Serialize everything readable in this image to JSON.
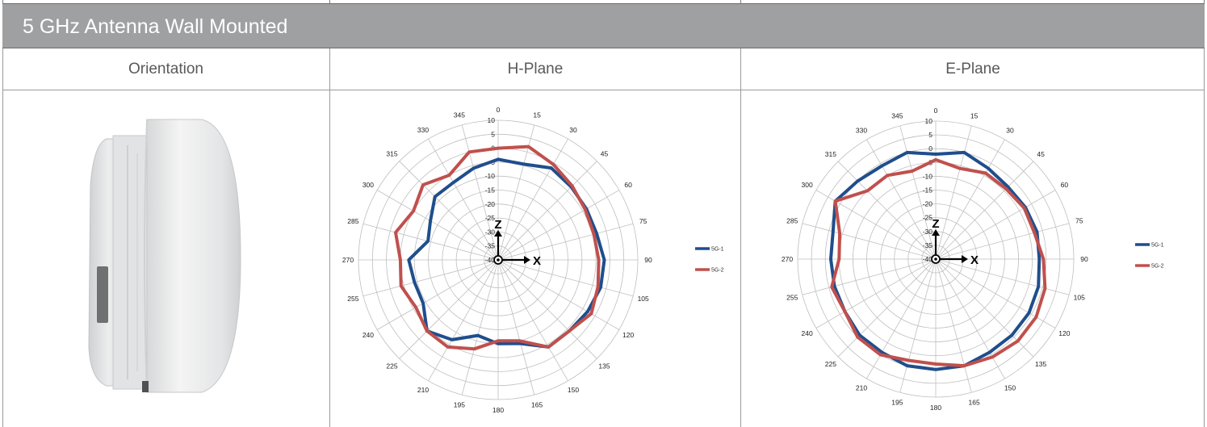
{
  "title": "5 GHz Antenna Wall Mounted",
  "headers": {
    "orientation": "Orientation",
    "h_plane": "H-Plane",
    "e_plane": "E-Plane"
  },
  "colors": {
    "series1": "#1f4e8c",
    "series2": "#c0504d",
    "title_bar": "#9fa0a2",
    "grid": "#bfbfbf"
  },
  "axis_labels": {
    "z": "Z",
    "x": "X"
  },
  "chart_data": [
    {
      "type": "polar-line",
      "name": "H-Plane",
      "angles": [
        0,
        15,
        30,
        45,
        60,
        75,
        90,
        105,
        120,
        135,
        150,
        165,
        180,
        195,
        210,
        225,
        240,
        255,
        270,
        285,
        300,
        315,
        330,
        345
      ],
      "angle_labels": [
        "0",
        "15",
        "30",
        "45",
        "60",
        "75",
        "90",
        "105",
        "120",
        "135",
        "150",
        "165",
        "180",
        "195",
        "210",
        "225",
        "240",
        "255",
        "270",
        "285",
        "300",
        "315",
        "330",
        "345"
      ],
      "r_ticks": [
        10,
        5,
        0,
        -5,
        -10,
        -15,
        -20,
        -25,
        -30,
        -35,
        -40
      ],
      "r_tick_labels": [
        "10",
        "5",
        "0",
        "-5",
        "-10",
        "-15",
        "-20",
        "-25",
        "-30",
        "-35",
        "-40"
      ],
      "rlim": [
        -40,
        10
      ],
      "legend_position": "right",
      "series": [
        {
          "name": "5G-1",
          "values": [
            -4,
            -4.5,
            -2,
            -3,
            -3.5,
            -3.5,
            -2,
            -2,
            -3,
            -4,
            -4,
            -9,
            -10,
            -12,
            -7,
            -4,
            -9,
            -9,
            -8,
            -14,
            -12,
            -8,
            -8,
            -6
          ]
        },
        {
          "name": "5G-2",
          "values": [
            0,
            2,
            -0.5,
            -2.5,
            -4,
            -4.5,
            -4,
            -3,
            -1.5,
            -4,
            -4,
            -10,
            -11,
            -7,
            -4,
            -4,
            -6,
            -4,
            -5,
            -2,
            -5,
            -2,
            -5,
            0
          ]
        }
      ]
    },
    {
      "type": "polar-line",
      "name": "E-Plane",
      "angles": [
        0,
        15,
        30,
        45,
        60,
        75,
        90,
        105,
        120,
        135,
        150,
        165,
        180,
        195,
        210,
        225,
        240,
        255,
        270,
        285,
        300,
        315,
        330,
        345
      ],
      "angle_labels": [
        "0",
        "15",
        "30",
        "45",
        "60",
        "75",
        "90",
        "105",
        "120",
        "135",
        "150",
        "165",
        "180",
        "195",
        "210",
        "225",
        "240",
        "255",
        "270",
        "285",
        "300",
        "315",
        "330",
        "345"
      ],
      "r_ticks": [
        10,
        5,
        0,
        -5,
        -10,
        -15,
        -20,
        -25,
        -30,
        -35,
        -40
      ],
      "r_tick_labels": [
        "10",
        "5",
        "0",
        "-5",
        "-10",
        "-15",
        "-20",
        "-25",
        "-30",
        "-35",
        "-40"
      ],
      "rlim": [
        -40,
        10
      ],
      "legend_position": "right",
      "series": [
        {
          "name": "5G-1",
          "values": [
            -2,
            0,
            -2,
            -3,
            -2.5,
            -2,
            -2.5,
            -1.5,
            -1,
            -1,
            -1,
            0,
            0,
            0,
            -1,
            -1,
            -2,
            -2,
            -2,
            -1.5,
            2,
            0,
            -1,
            0
          ]
        },
        {
          "name": "5G-2",
          "values": [
            -4,
            -6,
            -4,
            -4,
            -3,
            -3,
            -1,
            1,
            2,
            2,
            1,
            0,
            -2,
            -2,
            0,
            0,
            -2,
            -1,
            -5,
            -4,
            2,
            -5,
            -5,
            -7
          ]
        }
      ]
    }
  ]
}
